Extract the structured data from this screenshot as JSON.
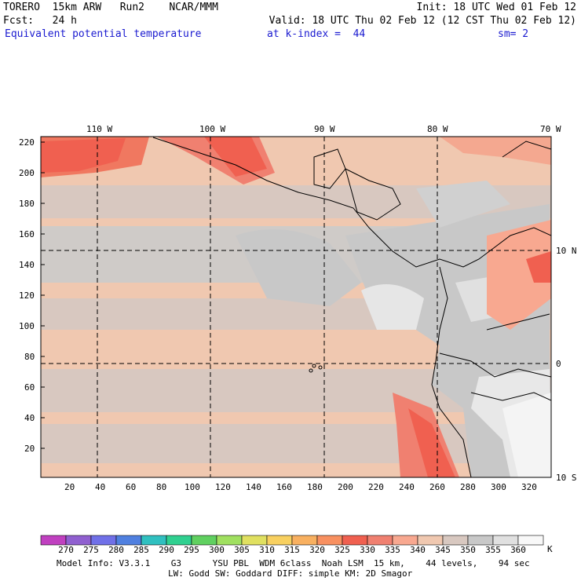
{
  "header": {
    "line1_left": "TORERO  15km ARW   Run2    NCAR/MMM",
    "line1_right": "Init: 18 UTC Wed 01 Feb 12",
    "line2_left": "Fcst:   24 h",
    "line2_right": "Valid: 18 UTC Thu 02 Feb 12 (12 CST Thu 02 Feb 12)",
    "field_name": "Equivalent potential temperature",
    "level": "at k-index =  44",
    "smoothing": "sm= 2"
  },
  "map": {
    "top_longitudes": [
      "110 W",
      "100 W",
      "90 W",
      "80 W",
      "70 W"
    ],
    "right_latitudes": [
      "10 N",
      "0",
      "10 S"
    ],
    "left_ticks": [
      "220",
      "200",
      "180",
      "160",
      "140",
      "120",
      "100",
      "80",
      "60",
      "40",
      "20"
    ],
    "bottom_ticks": [
      "20",
      "40",
      "60",
      "80",
      "100",
      "120",
      "140",
      "160",
      "180",
      "200",
      "220",
      "240",
      "260",
      "280",
      "300",
      "320"
    ]
  },
  "colorbar": {
    "unit": "K",
    "labels": [
      "270",
      "275",
      "280",
      "285",
      "290",
      "295",
      "300",
      "305",
      "310",
      "315",
      "320",
      "325",
      "330",
      "335",
      "340",
      "345",
      "350",
      "355",
      "360"
    ],
    "colors": [
      "#c040c0",
      "#9060d0",
      "#7070e8",
      "#5080e0",
      "#30c0c0",
      "#30d090",
      "#60d060",
      "#a0e060",
      "#e0e060",
      "#f8d060",
      "#f8b060",
      "#f89060",
      "#f06050",
      "#f08070",
      "#f8a890",
      "#f0c8b0",
      "#d8c8c0",
      "#c8c8c8",
      "#e0e0e0",
      "#f8f8f8"
    ]
  },
  "footer": {
    "line1": "Model Info: V3.3.1    G3      YSU PBL  WDM 6class  Noah LSM  15 km,    44 levels,    94 sec",
    "line2": "LW: Godd SW: Goddard DIFF: simple KM: 2D Smagor"
  }
}
